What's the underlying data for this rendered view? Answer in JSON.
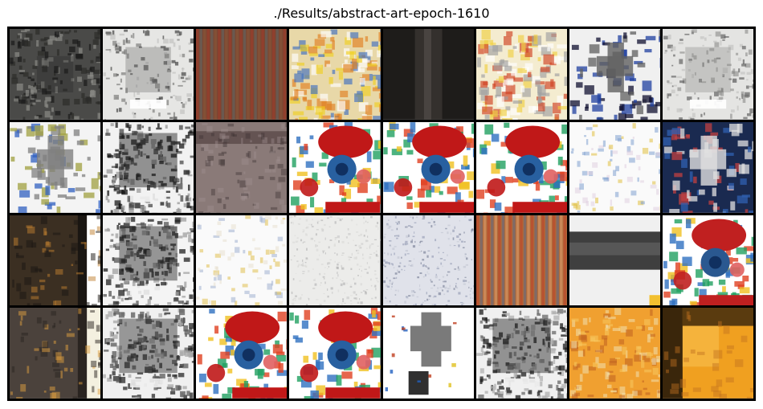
{
  "figure": {
    "title": "./Results/abstract-art-epoch-1610"
  },
  "tiles": [
    {
      "style": "grey-dark",
      "colors": [
        "#4a4a48",
        "#2c2c2a",
        "#8a8a86",
        "#1a1a1a"
      ]
    },
    {
      "style": "bw-light",
      "colors": [
        "#e6e6e4",
        "#bdbdbb",
        "#6e6e6c",
        "#2a2a2a"
      ]
    },
    {
      "style": "stripes",
      "colors": [
        "#7a4632",
        "#a23a2a",
        "#5c6a6a",
        "#8a5a3a"
      ]
    },
    {
      "style": "colorful",
      "colors": [
        "#e8d8a8",
        "#f0d020",
        "#4070c0",
        "#e08020"
      ]
    },
    {
      "style": "dark-stripe",
      "colors": [
        "#1e1c1a",
        "#3a3632",
        "#6a6460",
        "#0c0c0c"
      ]
    },
    {
      "style": "colorful",
      "colors": [
        "#f4ecd0",
        "#f0d040",
        "#a0a0a0",
        "#d04020"
      ]
    },
    {
      "style": "blue-white",
      "colors": [
        "#f0f0f0",
        "#2040a0",
        "#606060",
        "#101030"
      ]
    },
    {
      "style": "bw-light",
      "colors": [
        "#e4e4e2",
        "#c0c0be",
        "#8a8a88",
        "#505050"
      ]
    },
    {
      "style": "blue-white",
      "colors": [
        "#f4f4f4",
        "#3060c0",
        "#808080",
        "#a0a040"
      ]
    },
    {
      "style": "bw-dark",
      "colors": [
        "#f2f2f2",
        "#1a1a1a",
        "#4a4a4a",
        "#9a9a9a"
      ]
    },
    {
      "style": "grey-band",
      "colors": [
        "#8a7a78",
        "#5a4a48",
        "#a09090",
        "#3a3030"
      ]
    },
    {
      "style": "clown",
      "colors": [
        "#ffffff",
        "#c01818",
        "#2860a0",
        "#f0c020"
      ]
    },
    {
      "style": "clown",
      "colors": [
        "#ffffff",
        "#c01818",
        "#2860a0",
        "#f0c020"
      ]
    },
    {
      "style": "clown",
      "colors": [
        "#ffffff",
        "#c01818",
        "#2860a0",
        "#f0c020"
      ]
    },
    {
      "style": "white-speck",
      "colors": [
        "#fafafa",
        "#e0d0e0",
        "#e0c040",
        "#80a0d0"
      ]
    },
    {
      "style": "blue-white",
      "colors": [
        "#1a2a50",
        "#3060b0",
        "#e0e0e0",
        "#c04040"
      ]
    },
    {
      "style": "dark-orange",
      "colors": [
        "#1a1612",
        "#4a3a2a",
        "#c08030",
        "#ffffff"
      ]
    },
    {
      "style": "bw-dark",
      "colors": [
        "#f4f4f4",
        "#222222",
        "#555555",
        "#a0a0a0"
      ]
    },
    {
      "style": "white-speck",
      "colors": [
        "#fafafa",
        "#e8e0d0",
        "#e0c050",
        "#a0b0d0"
      ]
    },
    {
      "style": "noise-white",
      "colors": [
        "#ececea",
        "#d8d8d6",
        "#c8c8c6",
        "#b0b0b0"
      ]
    },
    {
      "style": "noise-white",
      "colors": [
        "#e0e2ea",
        "#c0c4d0",
        "#9098b0",
        "#707890"
      ]
    },
    {
      "style": "stripes",
      "colors": [
        "#b06a3a",
        "#c04028",
        "#5a6a8a",
        "#e0a070"
      ]
    },
    {
      "style": "dark-band",
      "colors": [
        "#f0f0f0",
        "#202020",
        "#707070",
        "#f2c030"
      ]
    },
    {
      "style": "clown",
      "colors": [
        "#ffffff",
        "#c02020",
        "#2a5890",
        "#f0c030"
      ]
    },
    {
      "style": "dark-orange",
      "colors": [
        "#2a2420",
        "#5a5048",
        "#e0a040",
        "#f4f0e0"
      ]
    },
    {
      "style": "bw-dark",
      "colors": [
        "#f0f0f0",
        "#2a2a2a",
        "#5a5a5a",
        "#a8a8a8"
      ]
    },
    {
      "style": "clown",
      "colors": [
        "#ffffff",
        "#c01818",
        "#2860a0",
        "#f0c020"
      ]
    },
    {
      "style": "clown",
      "colors": [
        "#ffffff",
        "#c01818",
        "#2860a0",
        "#f0c020"
      ]
    },
    {
      "style": "gray-cross",
      "colors": [
        "#ffffff",
        "#7a7a7a",
        "#303030",
        "#a0a0a0"
      ]
    },
    {
      "style": "bw-dark",
      "colors": [
        "#f0f0f0",
        "#1e1e1e",
        "#6a6a6a",
        "#b0b0b0"
      ]
    },
    {
      "style": "orange",
      "colors": [
        "#f0a030",
        "#f8c860",
        "#c06020",
        "#f0e0b0"
      ]
    },
    {
      "style": "orange-dark",
      "colors": [
        "#f0a020",
        "#1a1008",
        "#c07020",
        "#f8c050"
      ]
    }
  ]
}
